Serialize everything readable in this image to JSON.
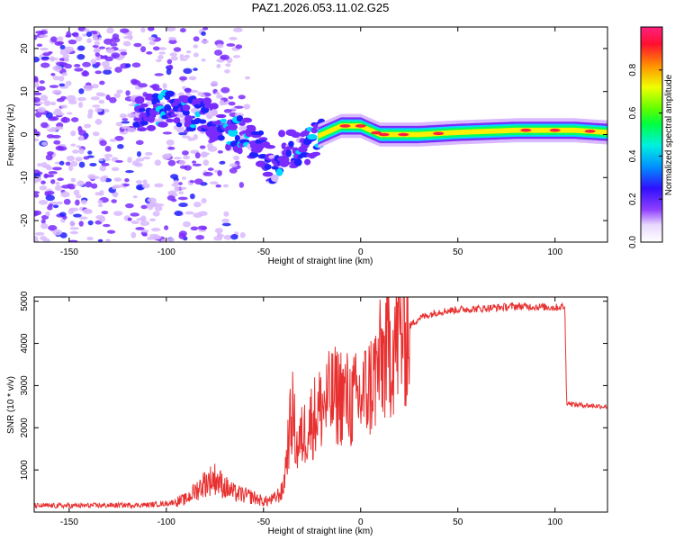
{
  "title": "PAZ1.2026.053.11.02.G25",
  "chart_data": [
    {
      "type": "heatmap",
      "title": "PAZ1.2026.053.11.02.G25",
      "xlabel": "Height of straight line (km)",
      "ylabel": "Frequency (Hz)",
      "xlim": [
        -168,
        127
      ],
      "ylim": [
        -25,
        25
      ],
      "xticks": [
        -150,
        -100,
        -50,
        0,
        50,
        100
      ],
      "yticks": [
        -20,
        -10,
        0,
        10,
        20
      ],
      "xtick_labels": [
        "-150",
        "-100",
        "-50",
        "0",
        "50",
        "100"
      ],
      "ytick_labels": [
        "-20",
        "-10",
        "0",
        "10",
        "20"
      ],
      "ridge": {
        "description": "dominant frequency track",
        "x": [
          -112,
          -100,
          -90,
          -80,
          -70,
          -60,
          -50,
          -45,
          -40,
          -30,
          -25,
          -20,
          -10,
          0,
          5,
          10,
          20,
          30,
          50,
          80,
          110,
          127
        ],
        "y": [
          5,
          6,
          5,
          5,
          1,
          0,
          -4,
          -8,
          -3,
          -4,
          -1,
          0,
          2,
          2,
          1,
          0,
          0,
          0,
          0.5,
          1,
          1,
          0.5
        ]
      },
      "colorbar": {
        "label": "Normalized spectral amplitude",
        "range": [
          0,
          1
        ],
        "ticks": [
          0.0,
          0.2,
          0.4,
          0.6,
          0.8
        ],
        "tick_labels": [
          "0.0",
          "0.2",
          "0.4",
          "0.6",
          "0.8"
        ],
        "colors": [
          "#ffffff",
          "#d8b8ff",
          "#7a2cff",
          "#2020ff",
          "#00d8ff",
          "#00ff60",
          "#60ff00",
          "#ffee00",
          "#ff8800",
          "#ff2040",
          "#ff2080"
        ]
      }
    },
    {
      "type": "line",
      "xlabel": "Height of straight line (km)",
      "ylabel": "SNR (10 * v/v)",
      "xlim": [
        -168,
        127
      ],
      "ylim": [
        0,
        5100
      ],
      "xticks": [
        -150,
        -100,
        -50,
        0,
        50,
        100
      ],
      "yticks": [
        1000,
        2000,
        3000,
        4000,
        5000
      ],
      "xtick_labels": [
        "-150",
        "-100",
        "-50",
        "0",
        "50",
        "100"
      ],
      "ytick_labels": [
        "1000",
        "2000",
        "3000",
        "4000",
        "5000"
      ],
      "color": "#e83030",
      "series": [
        {
          "name": "SNR",
          "x": [
            -168,
            -150,
            -130,
            -110,
            -100,
            -90,
            -85,
            -80,
            -75,
            -70,
            -65,
            -60,
            -55,
            -50,
            -45,
            -40,
            -37,
            -35,
            -33,
            -30,
            -25,
            -20,
            -15,
            -10,
            -5,
            0,
            5,
            10,
            15,
            20,
            25,
            30,
            40,
            50,
            60,
            70,
            80,
            90,
            100,
            105,
            106,
            110,
            120,
            127
          ],
          "y": [
            150,
            150,
            160,
            170,
            200,
            300,
            500,
            700,
            800,
            600,
            450,
            400,
            350,
            250,
            300,
            500,
            1800,
            2400,
            1500,
            1800,
            2200,
            2500,
            2700,
            2800,
            2600,
            2700,
            3000,
            3500,
            3900,
            4200,
            4400,
            4600,
            4750,
            4800,
            4820,
            4850,
            4880,
            4870,
            4850,
            4880,
            2600,
            2550,
            2520,
            2500
          ]
        }
      ]
    }
  ]
}
